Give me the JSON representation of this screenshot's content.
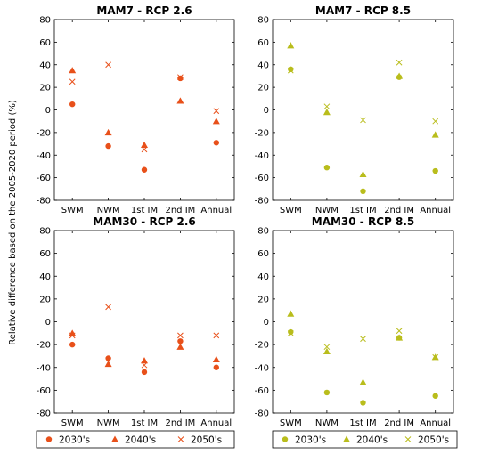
{
  "ylabel": "Relative difference based on the 2005-2020 period (%)",
  "colors": {
    "rcp26": "#e8501a",
    "rcp85": "#b9bd1c"
  },
  "legend": [
    {
      "labels": [
        "2030's",
        "2040's",
        "2050's"
      ],
      "color_key": "rcp26"
    },
    {
      "labels": [
        "2030's",
        "2040's",
        "2050's"
      ],
      "color_key": "rcp85"
    }
  ],
  "chart_data": [
    {
      "type": "scatter",
      "title": "MAM7 - RCP 2.6",
      "categories": [
        "SWM",
        "NWM",
        "1st IM",
        "2nd IM",
        "Annual"
      ],
      "ylim": [
        -80,
        80
      ],
      "yticks": [
        -80,
        -60,
        -40,
        -20,
        0,
        20,
        40,
        60,
        80
      ],
      "color_key": "rcp26",
      "series": [
        {
          "name": "2030's",
          "marker": "circle",
          "values": [
            5,
            -32,
            -53,
            28,
            -29
          ]
        },
        {
          "name": "2040's",
          "marker": "triangle",
          "values": [
            35,
            -20,
            -31,
            8,
            -10
          ]
        },
        {
          "name": "2050's",
          "marker": "x",
          "values": [
            25,
            40,
            -35,
            29,
            -1
          ]
        }
      ]
    },
    {
      "type": "scatter",
      "title": "MAM7 - RCP 8.5",
      "categories": [
        "SWM",
        "NWM",
        "1st IM",
        "2nd IM",
        "Annual"
      ],
      "ylim": [
        -80,
        80
      ],
      "yticks": [
        -80,
        -60,
        -40,
        -20,
        0,
        20,
        40,
        60,
        80
      ],
      "color_key": "rcp85",
      "series": [
        {
          "name": "2030's",
          "marker": "circle",
          "values": [
            36,
            -51,
            -72,
            29,
            -54
          ]
        },
        {
          "name": "2040's",
          "marker": "triangle",
          "values": [
            57,
            -2,
            -57,
            30,
            -22
          ]
        },
        {
          "name": "2050's",
          "marker": "x",
          "values": [
            35,
            3,
            -9,
            42,
            -10
          ]
        }
      ]
    },
    {
      "type": "scatter",
      "title": "MAM30 - RCP 2.6",
      "categories": [
        "SWM",
        "NWM",
        "1st IM",
        "2nd IM",
        "Annual"
      ],
      "ylim": [
        -80,
        80
      ],
      "yticks": [
        -80,
        -60,
        -40,
        -20,
        0,
        20,
        40,
        60,
        80
      ],
      "color_key": "rcp26",
      "series": [
        {
          "name": "2030's",
          "marker": "circle",
          "values": [
            -20,
            -32,
            -44,
            -17,
            -40
          ]
        },
        {
          "name": "2040's",
          "marker": "triangle",
          "values": [
            -10,
            -37,
            -34,
            -22,
            -33
          ]
        },
        {
          "name": "2050's",
          "marker": "x",
          "values": [
            -12,
            13,
            -38,
            -12,
            -12
          ]
        }
      ]
    },
    {
      "type": "scatter",
      "title": "MAM30 - RCP 8.5",
      "categories": [
        "SWM",
        "NWM",
        "1st IM",
        "2nd IM",
        "Annual"
      ],
      "ylim": [
        -80,
        80
      ],
      "yticks": [
        -80,
        -60,
        -40,
        -20,
        0,
        20,
        40,
        60,
        80
      ],
      "color_key": "rcp85",
      "series": [
        {
          "name": "2030's",
          "marker": "circle",
          "values": [
            -9,
            -62,
            -71,
            -14,
            -65
          ]
        },
        {
          "name": "2040's",
          "marker": "triangle",
          "values": [
            7,
            -26,
            -53,
            -14,
            -31
          ]
        },
        {
          "name": "2050's",
          "marker": "x",
          "values": [
            -10,
            -22,
            -15,
            -8,
            -31
          ]
        }
      ]
    }
  ]
}
